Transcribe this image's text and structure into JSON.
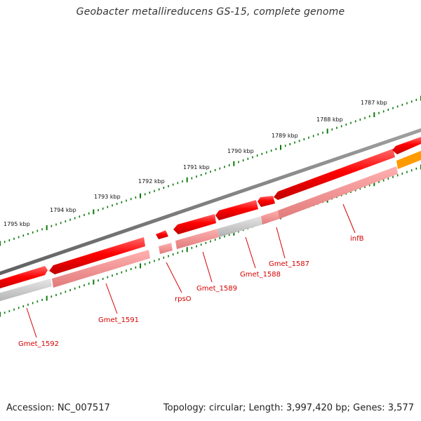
{
  "title": "Geobacter metallireducens GS-15, complete genome",
  "footer": {
    "accession": "Accession: NC_007517",
    "stats": "Topology: circular; Length: 3,997,420 bp; Genes: 3,577"
  },
  "ticks": [
    {
      "label": "1787 kbp"
    },
    {
      "label": "1788 kbp"
    },
    {
      "label": "1789 kbp"
    },
    {
      "label": "1790 kbp"
    },
    {
      "label": "1791 kbp"
    },
    {
      "label": "1792 kbp"
    },
    {
      "label": "1793 kbp"
    },
    {
      "label": "1794 kbp"
    },
    {
      "label": "1795 kbp"
    }
  ],
  "genes": [
    {
      "label": "infB"
    },
    {
      "label": "Gmet_1587"
    },
    {
      "label": "Gmet_1588"
    },
    {
      "label": "Gmet_1589"
    },
    {
      "label": "rpsO"
    },
    {
      "label": "Gmet_1591"
    },
    {
      "label": "Gmet_1592"
    }
  ],
  "colors": {
    "backbone": "#808080",
    "cds": "#ff0000",
    "cds_highlight": "#ff7a7a",
    "gene_track": "#f29a9a",
    "gene_track_grey": "#c8c8c8",
    "orange": "#ff9a00",
    "tick": "#0a7a0a",
    "label": "#d40000"
  }
}
